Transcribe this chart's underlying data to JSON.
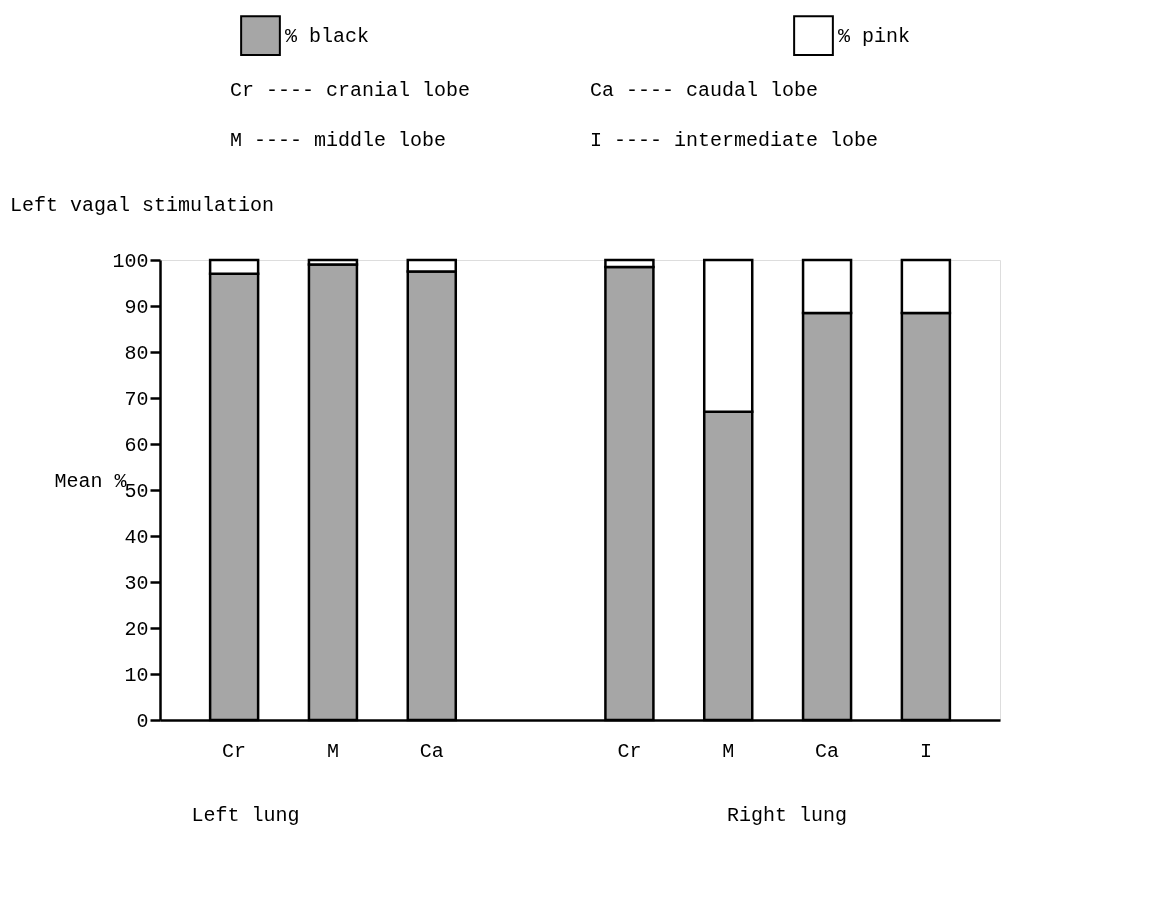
{
  "chart_data": {
    "type": "bar",
    "stacked": true,
    "title": "Left vagal stimulation",
    "ylabel": "Mean %",
    "categories": [
      "Cr",
      "M",
      "Ca",
      null,
      "Cr",
      "M",
      "Ca",
      "I"
    ],
    "series": [
      {
        "name": "% black",
        "color": "#a6a6a6",
        "values": [
          97,
          99,
          97.5,
          null,
          98.5,
          67,
          88.5,
          88.5
        ]
      },
      {
        "name": "% pink",
        "color": "#ffffff",
        "values": [
          3,
          1,
          2.5,
          null,
          1.5,
          33,
          11.5,
          11.5
        ]
      }
    ],
    "ylim": [
      0,
      100
    ],
    "yticks": [
      0,
      10,
      20,
      30,
      40,
      50,
      60,
      70,
      80,
      90,
      100
    ],
    "annotations": [
      "Cr ---- cranial lobe",
      "Ca ---- caudal lobe",
      "M  ---- middle lobe",
      "I  ---- intermediate lobe",
      "Left lung",
      "Right lung"
    ],
    "legend": "top",
    "grid": false
  }
}
